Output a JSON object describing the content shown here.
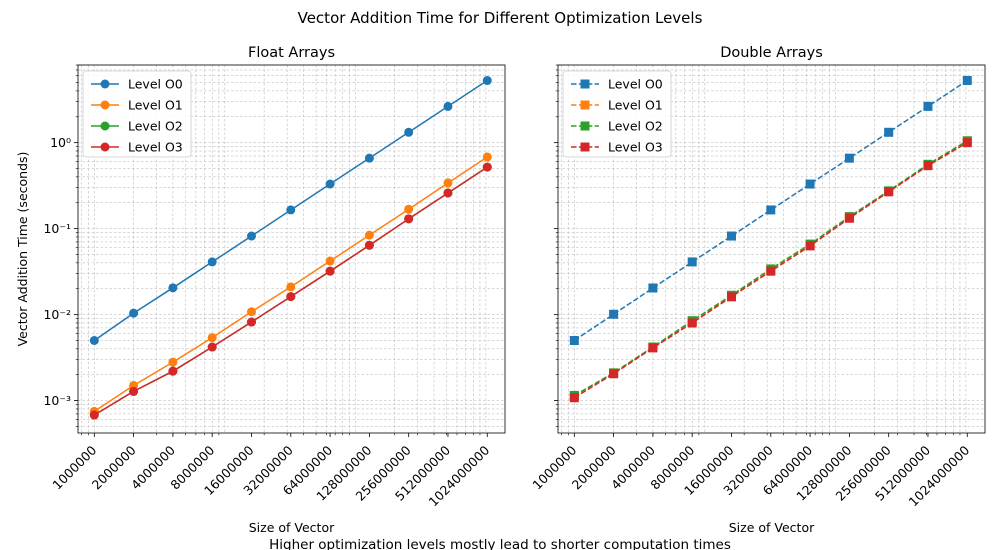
{
  "figure": {
    "suptitle": "Vector Addition Time for Different Optimization Levels",
    "caption": "Higher optimization levels mostly lead to shorter computation times"
  },
  "chart_data": [
    {
      "type": "line",
      "title": "Float Arrays",
      "xlabel": "Size of Vector",
      "ylabel": "Vector Addition Time (seconds)",
      "x_scale": "log",
      "y_scale": "log",
      "xlim": [
        750000,
        1400000000
      ],
      "ylim": [
        0.00042,
        8.0
      ],
      "x": [
        1000000,
        2000000,
        4000000,
        8000000,
        16000000,
        32000000,
        64000000,
        128000000,
        256000000,
        512000000,
        1024000000
      ],
      "x_tick_labels": [
        "1000000",
        "2000000",
        "4000000",
        "8000000",
        "16000000",
        "32000000",
        "64000000",
        "128000000",
        "256000000",
        "512000000",
        "1024000000"
      ],
      "y_tick_labels": [
        "10^-3",
        "10^-2",
        "10^-1",
        "10^0"
      ],
      "y_ticks": [
        0.001,
        0.01,
        0.1,
        1
      ],
      "grid": true,
      "legend_position": "top-left",
      "marker": "circle",
      "line_style": "solid",
      "series": [
        {
          "name": "Level O0",
          "color": "#1f77b4",
          "values": [
            0.005,
            0.0104,
            0.0205,
            0.041,
            0.082,
            0.165,
            0.33,
            0.66,
            1.32,
            2.64,
            5.28
          ]
        },
        {
          "name": "Level O1",
          "color": "#ff7f0e",
          "values": [
            0.00075,
            0.0015,
            0.0028,
            0.0054,
            0.0108,
            0.021,
            0.042,
            0.084,
            0.168,
            0.34,
            0.68
          ]
        },
        {
          "name": "Level O2",
          "color": "#2ca02c",
          "values": [
            0.00068,
            0.00128,
            0.0022,
            0.0042,
            0.0082,
            0.0162,
            0.032,
            0.064,
            0.13,
            0.26,
            0.52
          ]
        },
        {
          "name": "Level O3",
          "color": "#d62728",
          "values": [
            0.00068,
            0.00128,
            0.0022,
            0.0042,
            0.0082,
            0.0162,
            0.032,
            0.064,
            0.13,
            0.26,
            0.52
          ]
        }
      ]
    },
    {
      "type": "line",
      "title": "Double Arrays",
      "xlabel": "Size of Vector",
      "ylabel": "",
      "x_scale": "log",
      "y_scale": "log",
      "xlim": [
        750000,
        1400000000
      ],
      "ylim": [
        0.00042,
        8.0
      ],
      "x": [
        1000000,
        2000000,
        4000000,
        8000000,
        16000000,
        32000000,
        64000000,
        128000000,
        256000000,
        512000000,
        1024000000
      ],
      "x_tick_labels": [
        "1000000",
        "2000000",
        "4000000",
        "8000000",
        "16000000",
        "32000000",
        "64000000",
        "128000000",
        "256000000",
        "512000000",
        "1024000000"
      ],
      "y_tick_labels": [],
      "y_ticks": [
        0.001,
        0.01,
        0.1,
        1
      ],
      "grid": true,
      "legend_position": "top-left",
      "marker": "square",
      "line_style": "dashed",
      "series": [
        {
          "name": "Level O0",
          "color": "#1f77b4",
          "values": [
            0.005,
            0.0101,
            0.0204,
            0.041,
            0.082,
            0.165,
            0.33,
            0.66,
            1.32,
            2.64,
            5.28
          ]
        },
        {
          "name": "Level O1",
          "color": "#ff7f0e",
          "values": [
            0.00112,
            0.0021,
            0.0042,
            0.0083,
            0.0165,
            0.033,
            0.066,
            0.135,
            0.27,
            0.55,
            1.05
          ]
        },
        {
          "name": "Level O2",
          "color": "#2ca02c",
          "values": [
            0.00115,
            0.0021,
            0.0042,
            0.0085,
            0.0168,
            0.034,
            0.066,
            0.138,
            0.275,
            0.56,
            1.05
          ]
        },
        {
          "name": "Level O3",
          "color": "#d62728",
          "values": [
            0.00108,
            0.00205,
            0.0041,
            0.008,
            0.0161,
            0.032,
            0.063,
            0.132,
            0.268,
            0.54,
            1.0
          ]
        }
      ]
    }
  ]
}
